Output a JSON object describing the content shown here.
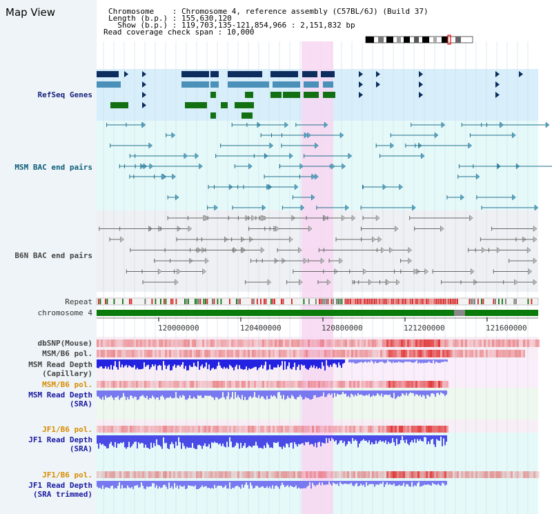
{
  "page": {
    "title": "Map View"
  },
  "info": {
    "chromosome_label": "Chromosome    : Chromosome 4, reference assembly (C57BL/6J) (Build 37)",
    "length_label": "Length (b.p.) : 155,630,120",
    "show_label": "  Show (b.p.) : 119,703,135-121,854,966 : 2,151,832 bp",
    "read_check_label": "Read coverage check span : 10,000"
  },
  "tracks": {
    "refseq": "RefSeq Genes",
    "msm_bac": "MSM BAC end pairs",
    "b6n_bac": "B6N BAC end pairs",
    "repeat": "Repeat",
    "chromosome": "chromosome 4",
    "dbsnp": "dbSNP(Mouse)",
    "msm_b6_pol_1": "MSM/B6 pol.",
    "msm_read_depth_cap_1": "MSM Read Depth",
    "msm_read_depth_cap_2": "(Capillary)",
    "msm_b6_pol_2": "MSM/B6 pol.",
    "msm_read_depth_sra_1": "MSM Read Depth",
    "msm_read_depth_sra_2": "(SRA)",
    "jf1_b6_pol_1": "JF1/B6 pol.",
    "jf1_read_depth_sra_1": "JF1 Read Depth",
    "jf1_read_depth_sra_2": "(SRA)",
    "jf1_b6_pol_2": "JF1/B6 pol.",
    "jf1_read_depth_trim_1": "JF1 Read Depth",
    "jf1_read_depth_trim_2": "(SRA trimmed)"
  },
  "axis": {
    "ticks": [
      "120000000",
      "120400000",
      "120800000",
      "121200000",
      "121600000"
    ]
  },
  "colors": {
    "refseq_bg": "#d8eefa",
    "msm_bg": "#e6f9f9",
    "highlight": "#f7d7f2",
    "gene_navy": "#0c2d5e",
    "gene_blue": "#4a90b8",
    "gene_green": "#127012",
    "bac_teal": "#1e6e8a",
    "bac_gray": "#666666",
    "depth_blue": "#2222e0",
    "depth_light": "#7878f0",
    "snp_red": "#e03030"
  }
}
